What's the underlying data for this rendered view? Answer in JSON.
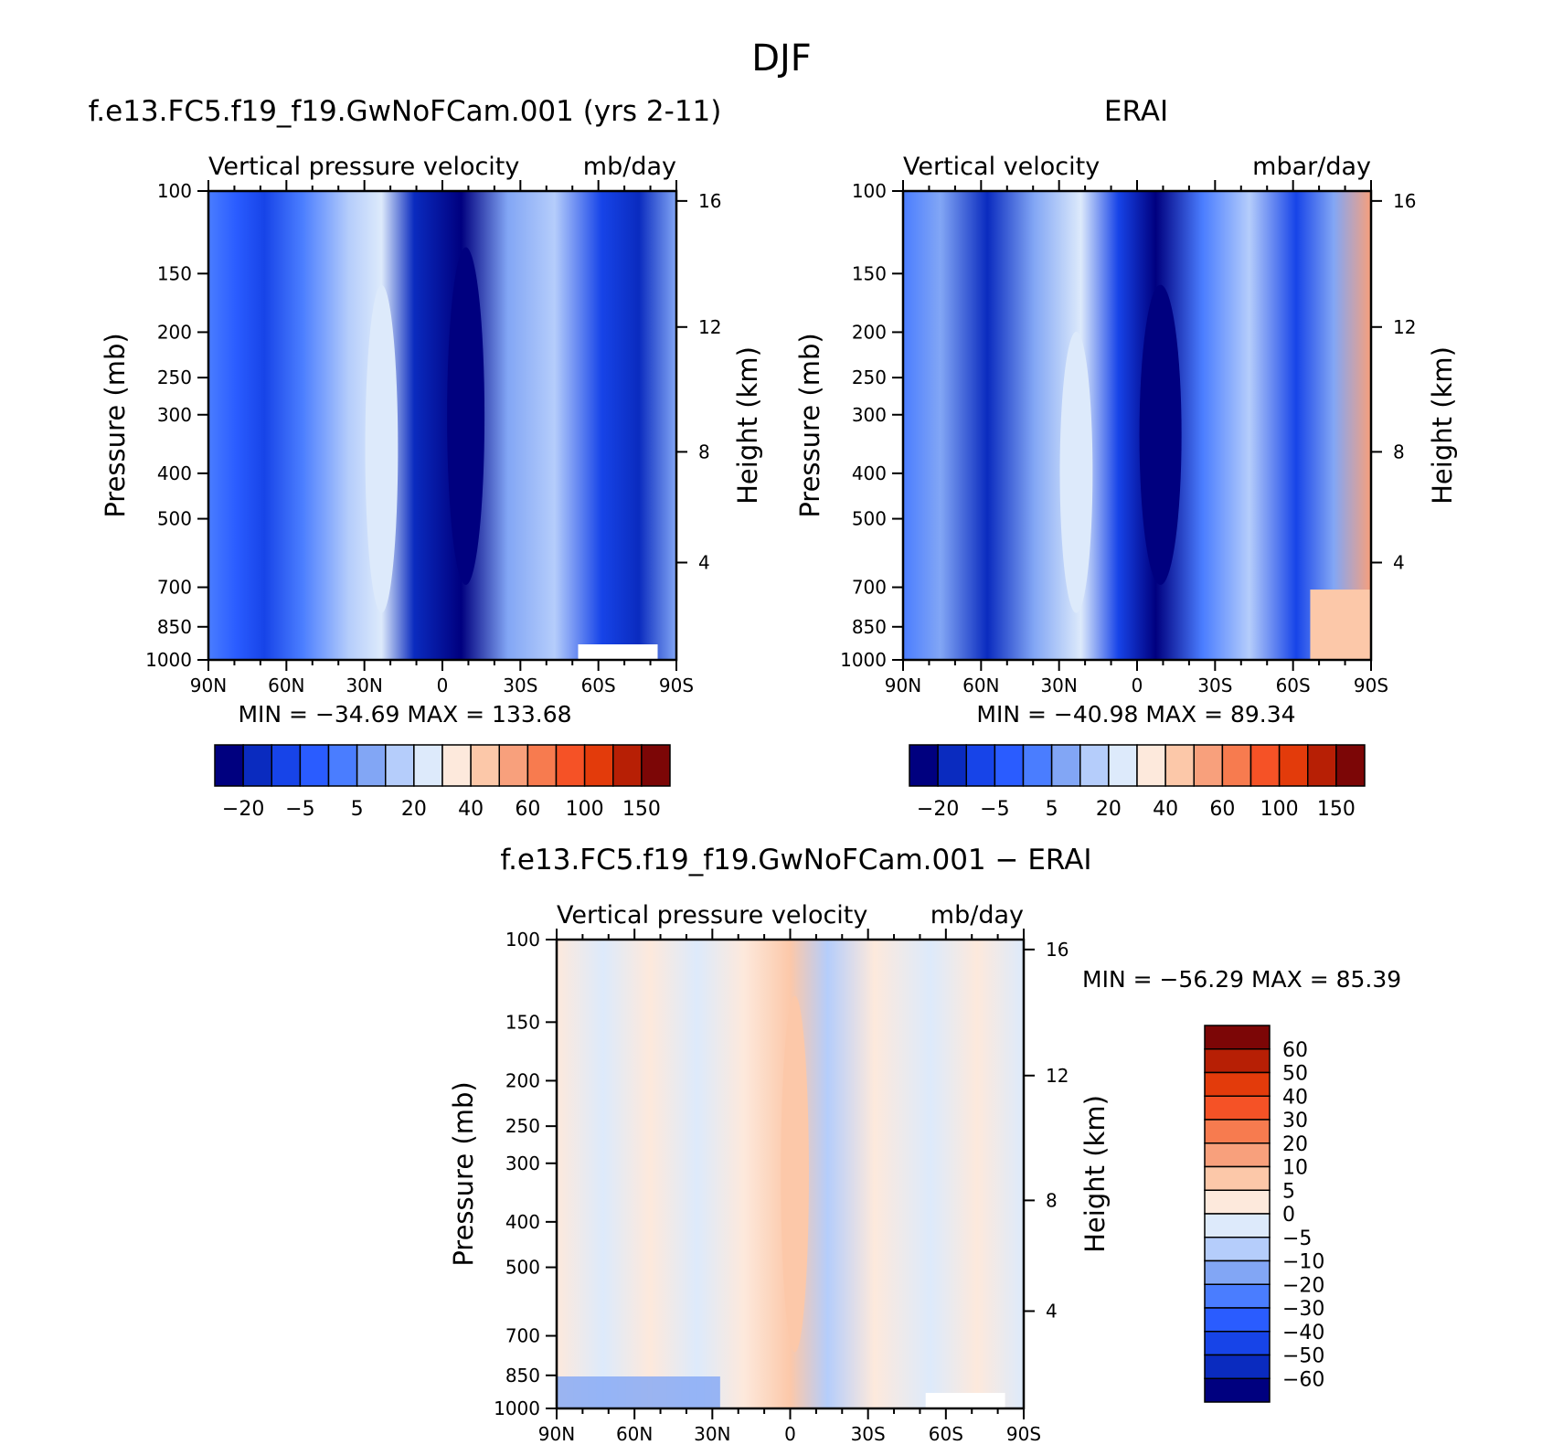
{
  "figure_title": "DJF",
  "chart_data": [
    {
      "id": "model",
      "type": "heatmap",
      "title": "f.e13.FC5.f19_f19.GwNoFCam.001 (yrs 2-11)",
      "subtitle_left": "Vertical pressure velocity",
      "subtitle_right": "mb/day",
      "xlabel": "",
      "ylabel": "Pressure (mb)",
      "y2label": "Height (km)",
      "x_ticks": [
        "90N",
        "60N",
        "30N",
        "0",
        "30S",
        "60S",
        "90S"
      ],
      "x_range": [
        90,
        -90
      ],
      "y_ticks": [
        100,
        150,
        200,
        250,
        300,
        400,
        500,
        700,
        850,
        1000
      ],
      "y_range": [
        100,
        1000
      ],
      "y2_ticks": [
        16,
        12,
        8,
        4
      ],
      "min_label": "MIN = −34.69",
      "max_label": "MAX = 133.68",
      "min": -34.69,
      "max": 133.68,
      "colorbar_labels": [
        "−20",
        "−5",
        "5",
        "20",
        "40",
        "60",
        "100",
        "150"
      ],
      "colorbar_colors": [
        "#00007f",
        "#0a2bbf",
        "#1744e8",
        "#2a5cff",
        "#4a7dff",
        "#82a6f5",
        "#b5cdfb",
        "#ddeafb",
        "#fde9dc",
        "#fcc8a9",
        "#f8a07c",
        "#f77b4f",
        "#f55226",
        "#e33b0b",
        "#b71f05",
        "#7c0606"
      ]
    },
    {
      "id": "obs",
      "type": "heatmap",
      "title": "ERAI",
      "subtitle_left": "Vertical velocity",
      "subtitle_right": "mbar/day",
      "xlabel": "",
      "ylabel": "Pressure (mb)",
      "y2label": "Height (km)",
      "x_ticks": [
        "90N",
        "60N",
        "30N",
        "0",
        "30S",
        "60S",
        "90S"
      ],
      "x_range": [
        90,
        -90
      ],
      "y_ticks": [
        100,
        150,
        200,
        250,
        300,
        400,
        500,
        700,
        850,
        1000
      ],
      "y_range": [
        100,
        1000
      ],
      "y2_ticks": [
        16,
        12,
        8,
        4
      ],
      "min_label": "MIN = −40.98",
      "max_label": "MAX = 89.34",
      "min": -40.98,
      "max": 89.34,
      "colorbar_labels": [
        "−20",
        "−5",
        "5",
        "20",
        "40",
        "60",
        "100",
        "150"
      ],
      "colorbar_colors": [
        "#00007f",
        "#0a2bbf",
        "#1744e8",
        "#2a5cff",
        "#4a7dff",
        "#82a6f5",
        "#b5cdfb",
        "#ddeafb",
        "#fde9dc",
        "#fcc8a9",
        "#f8a07c",
        "#f77b4f",
        "#f55226",
        "#e33b0b",
        "#b71f05",
        "#7c0606"
      ]
    },
    {
      "id": "diff",
      "type": "heatmap",
      "title": "f.e13.FC5.f19_f19.GwNoFCam.001 − ERAI",
      "subtitle_left": "Vertical pressure velocity",
      "subtitle_right": "mb/day",
      "xlabel": "",
      "ylabel": "Pressure (mb)",
      "y2label": "Height (km)",
      "x_ticks": [
        "90N",
        "60N",
        "30N",
        "0",
        "30S",
        "60S",
        "90S"
      ],
      "x_range": [
        90,
        -90
      ],
      "y_ticks": [
        100,
        150,
        200,
        250,
        300,
        400,
        500,
        700,
        850,
        1000
      ],
      "y_range": [
        100,
        1000
      ],
      "y2_ticks": [
        16,
        12,
        8,
        4
      ],
      "min_label": "MIN = −56.29",
      "max_label": "MAX = 85.39",
      "min": -56.29,
      "max": 85.39,
      "colorbar_labels": [
        "60",
        "50",
        "40",
        "30",
        "20",
        "10",
        "5",
        "0",
        "−5",
        "−10",
        "−20",
        "−30",
        "−40",
        "−50",
        "−60"
      ],
      "colorbar_colors": [
        "#7c0606",
        "#b71f05",
        "#e33b0b",
        "#f55226",
        "#f77b4f",
        "#f8a07c",
        "#fcc8a9",
        "#fde9dc",
        "#ddeafb",
        "#b5cdfb",
        "#82a6f5",
        "#4a7dff",
        "#2a5cff",
        "#1744e8",
        "#0a2bbf",
        "#00007f"
      ]
    }
  ]
}
